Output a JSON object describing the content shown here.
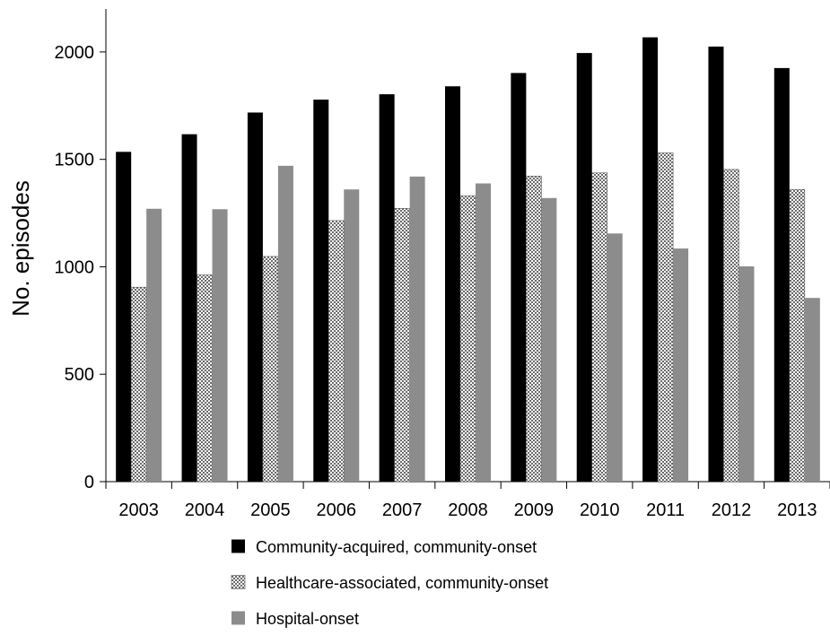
{
  "chart_data": {
    "type": "bar",
    "title": "",
    "xlabel": "",
    "ylabel": "No. episodes",
    "ylim": [
      0,
      2200
    ],
    "yticks": [
      0,
      500,
      1000,
      1500,
      2000
    ],
    "grid": false,
    "legend_position": "bottom",
    "categories": [
      "2003",
      "2004",
      "2005",
      "2006",
      "2007",
      "2008",
      "2009",
      "2010",
      "2011",
      "2012",
      "2013"
    ],
    "series": [
      {
        "name": "Community-acquired, community-onset",
        "color": "#000000",
        "pattern": "solid",
        "values": [
          1535,
          1617,
          1718,
          1778,
          1803,
          1840,
          1902,
          1995,
          2068,
          2025,
          1925
        ]
      },
      {
        "name": "Healthcare-associated, community-onset",
        "color": "#bbbbbb",
        "pattern": "dotted",
        "values": [
          905,
          962,
          1048,
          1215,
          1272,
          1330,
          1422,
          1437,
          1530,
          1453,
          1360
        ]
      },
      {
        "name": "Hospital-onset",
        "color": "#8c8c8c",
        "pattern": "solid",
        "values": [
          1270,
          1268,
          1470,
          1360,
          1420,
          1388,
          1320,
          1155,
          1085,
          1002,
          855
        ]
      }
    ]
  }
}
